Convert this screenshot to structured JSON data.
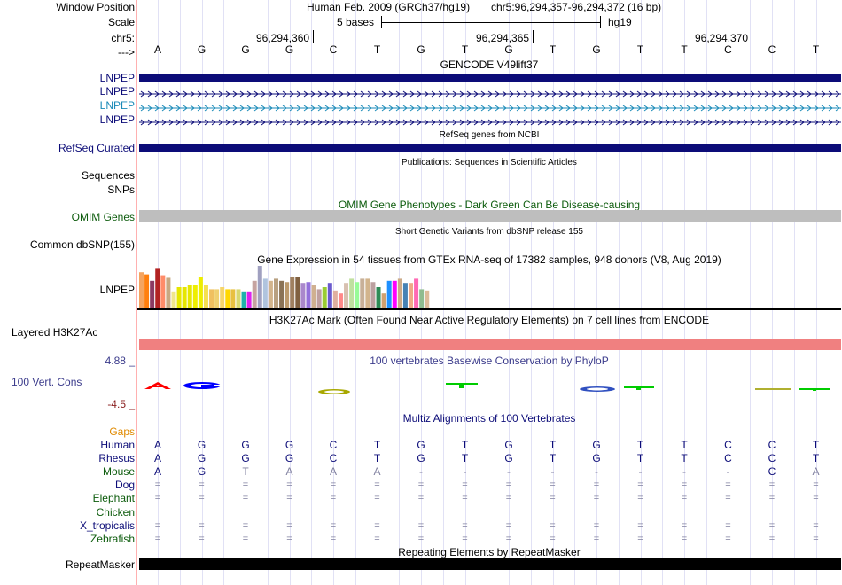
{
  "header": {
    "window_position_label": "Window Position",
    "assembly_text": "Human Feb. 2009 (GRCh37/hg19)",
    "coordinates_text": "chr5:96,294,357-96,294,372 (16 bp)",
    "scale_label": "Scale",
    "scale_text": "5 bases",
    "scale_db": "hg19",
    "chrom_label": "chr5:",
    "strand_label": "--->",
    "positions": [
      "96,294,360",
      "96,294,365",
      "96,294,370"
    ]
  },
  "reference_bases": [
    "A",
    "G",
    "G",
    "G",
    "C",
    "T",
    "G",
    "T",
    "G",
    "T",
    "G",
    "T",
    "T",
    "C",
    "C",
    "T"
  ],
  "tracks": {
    "gencode": {
      "title": "GENCODE V49lift37",
      "rows": [
        {
          "label": "LNPEP",
          "style": "thick",
          "color": "#0c0c78"
        },
        {
          "label": "LNPEP",
          "style": "arrows",
          "color": "#0c0c78"
        },
        {
          "label": "LNPEP",
          "style": "arrows",
          "color": "#1a8ab8"
        },
        {
          "label": "LNPEP",
          "style": "arrows",
          "color": "#0c0c78"
        }
      ]
    },
    "refseq": {
      "title": "RefSeq genes from NCBI",
      "label": "RefSeq Curated",
      "color": "#0c0c78"
    },
    "publications": {
      "title": "Publications: Sequences in Scientific Articles",
      "label1": "Sequences",
      "label2": "SNPs"
    },
    "omim": {
      "title": "OMIM Gene Phenotypes - Dark Green Can Be Disease-causing",
      "label": "OMIM Genes",
      "color": "#0d5c0d"
    },
    "dbsnp": {
      "title": "Short Genetic Variants from dbSNP release 155",
      "label": "Common dbSNP(155)"
    },
    "gtex": {
      "title": "Gene Expression in 54 tissues from GTEx RNA-seq of 17382 samples, 948 donors (V8, Aug 2019)",
      "label": "LNPEP"
    },
    "h3k27ac": {
      "title": "H3K27Ac Mark (Often Found Near Active Regulatory Elements) on 7 cell lines from ENCODE",
      "label": "Layered H3K27Ac",
      "color": "#f08080"
    },
    "phylop": {
      "title": "100 vertebrates Basewise Conservation by PhyloP",
      "label": "100 Vert. Cons",
      "max_label": "4.88 _",
      "min_label": "-4.5 _",
      "color": "#3c3c8c"
    },
    "multiz": {
      "title": "Multiz Alignments of 100 Vertebrates",
      "gaps_label": "Gaps",
      "rows": [
        {
          "label": "Human",
          "color": "#0c0c78",
          "bases": [
            "A",
            "G",
            "G",
            "G",
            "C",
            "T",
            "G",
            "T",
            "G",
            "T",
            "G",
            "T",
            "T",
            "C",
            "C",
            "T"
          ]
        },
        {
          "label": "Rhesus",
          "color": "#0c0c78",
          "bases": [
            "A",
            "G",
            "G",
            "G",
            "C",
            "T",
            "G",
            "T",
            "G",
            "T",
            "G",
            "T",
            "T",
            "C",
            "C",
            "T"
          ]
        },
        {
          "label": "Mouse",
          "color": "#0d5c0d",
          "bases": [
            "A",
            "G",
            "T",
            "A",
            "A",
            "A",
            "-",
            "-",
            "-",
            "-",
            "-",
            "-",
            "-",
            "-",
            "C",
            "A"
          ]
        },
        {
          "label": "Dog",
          "color": "#0c0c78",
          "bases": [
            "=",
            "=",
            "=",
            "=",
            "=",
            "=",
            "=",
            "=",
            "=",
            "=",
            "=",
            "=",
            "=",
            "=",
            "=",
            "="
          ]
        },
        {
          "label": "Elephant",
          "color": "#0d5c0d",
          "bases": [
            "=",
            "=",
            "=",
            "=",
            "=",
            "=",
            "=",
            "=",
            "=",
            "=",
            "=",
            "=",
            "=",
            "=",
            "=",
            "="
          ]
        },
        {
          "label": "Chicken",
          "color": "#0d5c0d",
          "bases": [
            "",
            "",
            "",
            "",
            "",
            "",
            "",
            "",
            "",
            "",
            "",
            "",
            "",
            "",
            "",
            ""
          ]
        },
        {
          "label": "X_tropicalis",
          "color": "#0c0c78",
          "bases": [
            "=",
            "=",
            "=",
            "=",
            "=",
            "=",
            "=",
            "=",
            "=",
            "=",
            "=",
            "=",
            "=",
            "=",
            "=",
            "="
          ]
        },
        {
          "label": "Zebrafish",
          "color": "#0d5c0d",
          "bases": [
            "=",
            "=",
            "=",
            "=",
            "=",
            "=",
            "=",
            "=",
            "=",
            "=",
            "=",
            "=",
            "=",
            "=",
            "=",
            "="
          ]
        }
      ]
    },
    "repeatmasker": {
      "title": "Repeating Elements by RepeatMasker",
      "label": "RepeatMasker",
      "color": "#000000"
    }
  },
  "chart_data": {
    "type": "bar",
    "title": "Gene Expression in 54 tissues from GTEx RNA-seq of 17382 samples, 948 donors (V8, Aug 2019)",
    "xlabel": "",
    "ylabel": "",
    "relative_values": [
      0.85,
      0.8,
      0.65,
      0.95,
      0.78,
      0.72,
      0.4,
      0.5,
      0.5,
      0.55,
      0.55,
      0.75,
      0.55,
      0.45,
      0.45,
      0.5,
      0.45,
      0.45,
      0.45,
      0.4,
      0.4,
      0.65,
      1.0,
      0.7,
      0.65,
      0.7,
      0.65,
      0.62,
      0.75,
      0.75,
      0.6,
      0.62,
      0.55,
      0.45,
      0.5,
      0.6,
      0.42,
      0.35,
      0.6,
      0.7,
      0.62,
      0.7,
      0.7,
      0.62,
      0.5,
      0.35,
      0.65,
      0.65,
      0.7,
      0.6,
      0.6,
      0.7,
      0.45,
      0.42
    ],
    "colors": [
      "#f4a460",
      "#ff7f0e",
      "#8b3a62",
      "#b22222",
      "#ff8c69",
      "#c8a882",
      "#f0e68c",
      "#e6e600",
      "#e6e600",
      "#e6e600",
      "#eeee00",
      "#eeee00",
      "#f5e050",
      "#f0c060",
      "#f0d070",
      "#f5d56a",
      "#ffd700",
      "#e8c040",
      "#d8d870",
      "#20b2aa",
      "#dd22ee",
      "#c6a3a0",
      "#a0a0c0",
      "#b0c4de",
      "#d2b48c",
      "#b8a080",
      "#8b7355",
      "#bc9a6c",
      "#a08060",
      "#806040",
      "#aa88cc",
      "#9370db",
      "#d0b090",
      "#c0a0a0",
      "#9acd32",
      "#6a5acd",
      "#e0b0a0",
      "#ff8888",
      "#d8c0b0",
      "#c0e0a0",
      "#98fb98",
      "#c8b098",
      "#d2b48c",
      "#bca0a0",
      "#2e8b57",
      "#d0a070",
      "#1e90ff",
      "#ff00ff",
      "#ccaa88",
      "#4682b4",
      "#eeaa88",
      "#ff69b4",
      "#8fbc8f",
      "#ddbb99"
    ]
  }
}
